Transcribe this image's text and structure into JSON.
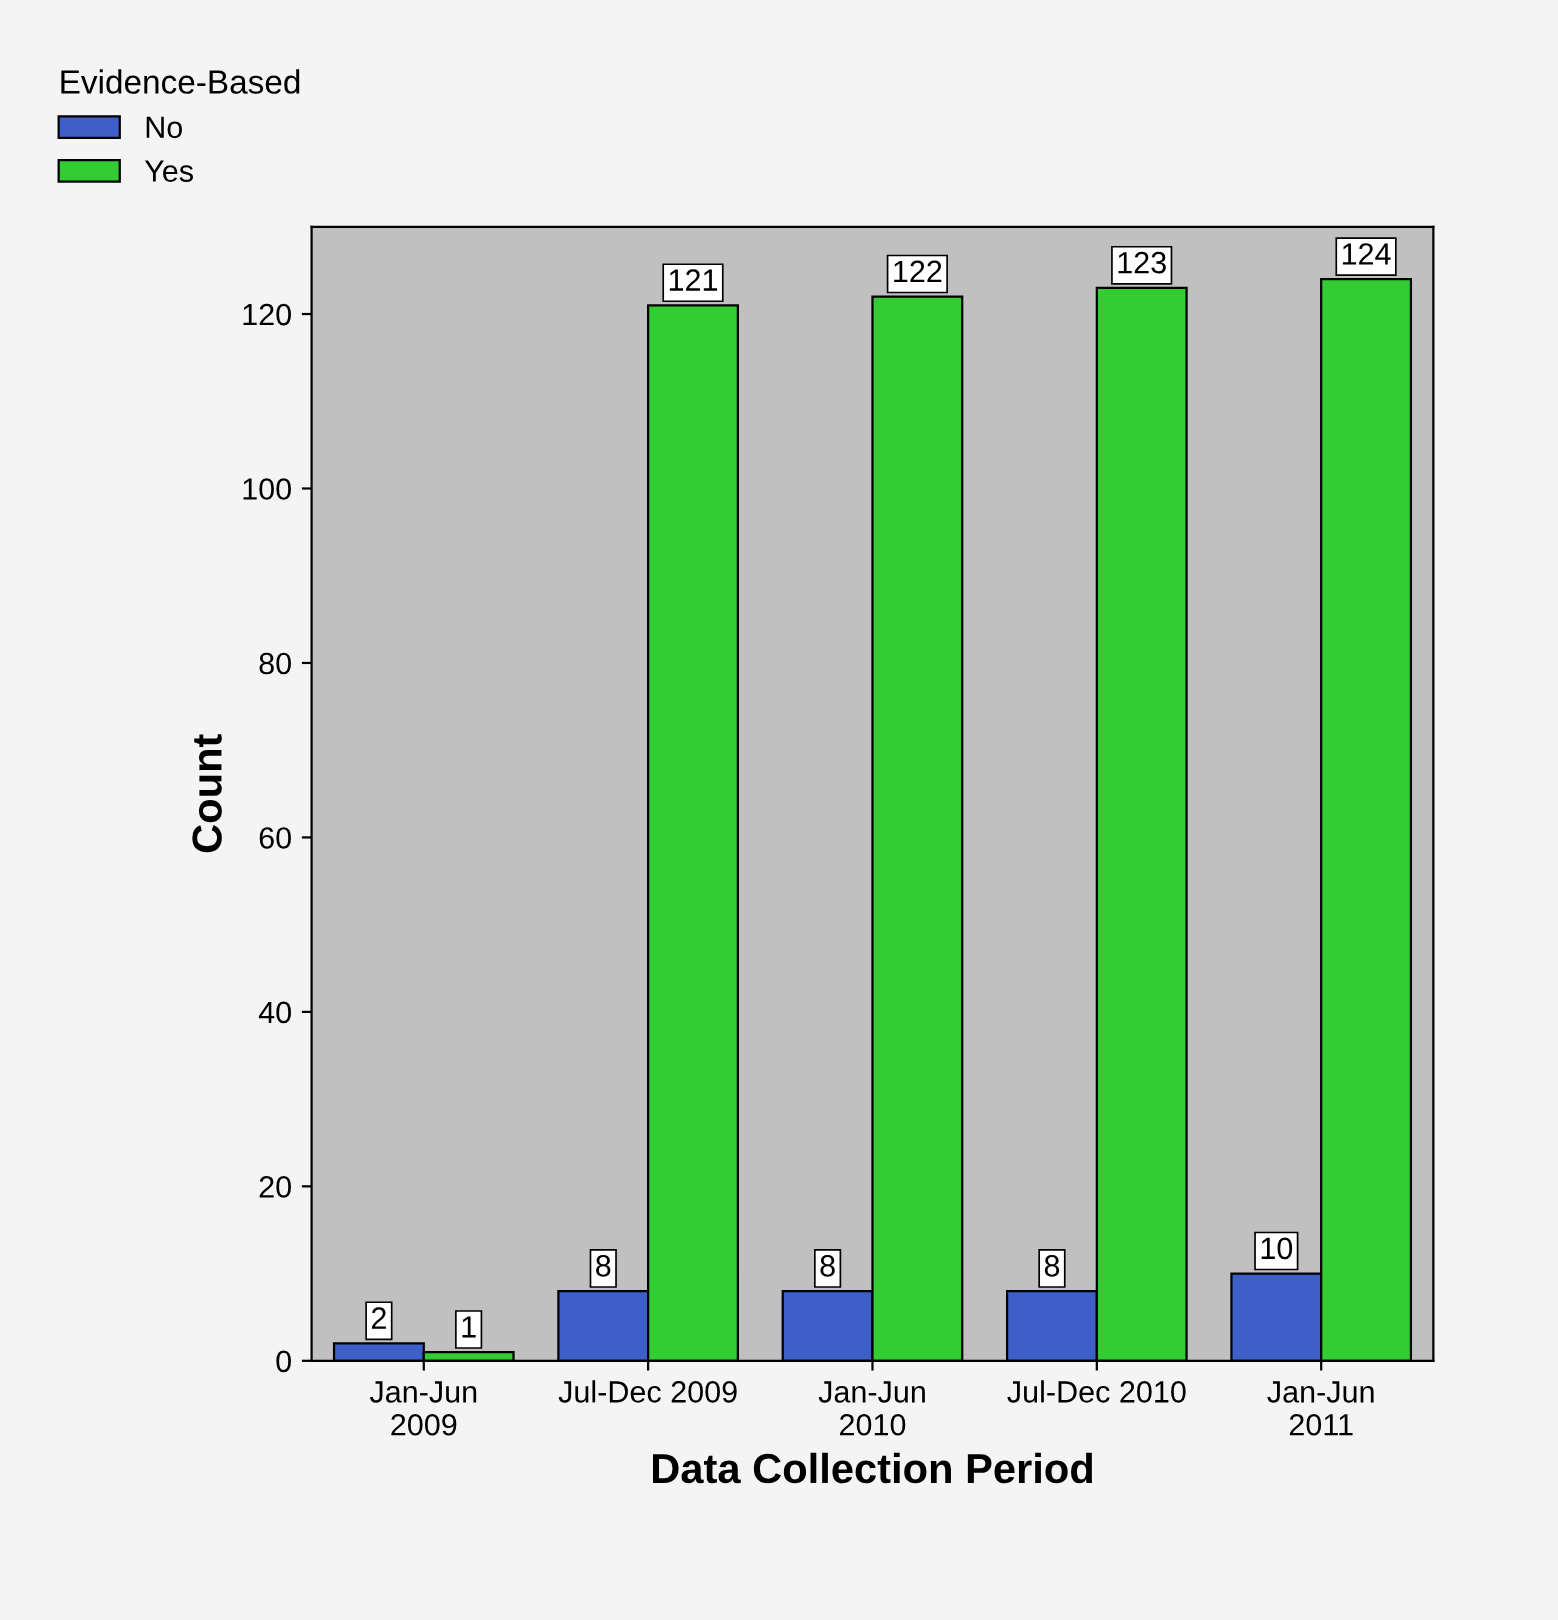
{
  "chart_data": {
    "type": "bar",
    "xlabel": "Data Collection Period",
    "ylabel": "Count",
    "legend_title": "Evidence-Based",
    "legend": "top left",
    "categories": [
      "Jan-Jun\n2009",
      "Jul-Dec 2009",
      "Jan-Jun\n2010",
      "Jul-Dec 2010",
      "Jan-Jun\n2011"
    ],
    "series": [
      {
        "name": "No",
        "color": "#3f5fc8",
        "values": [
          2,
          8,
          8,
          8,
          10
        ]
      },
      {
        "name": "Yes",
        "color": "#33cc33",
        "values": [
          1,
          121,
          122,
          123,
          124
        ]
      }
    ],
    "ylim": [
      0,
      130
    ],
    "yticks": [
      0,
      20,
      40,
      60,
      80,
      100,
      120
    ],
    "grid": false,
    "data_labels": true
  }
}
